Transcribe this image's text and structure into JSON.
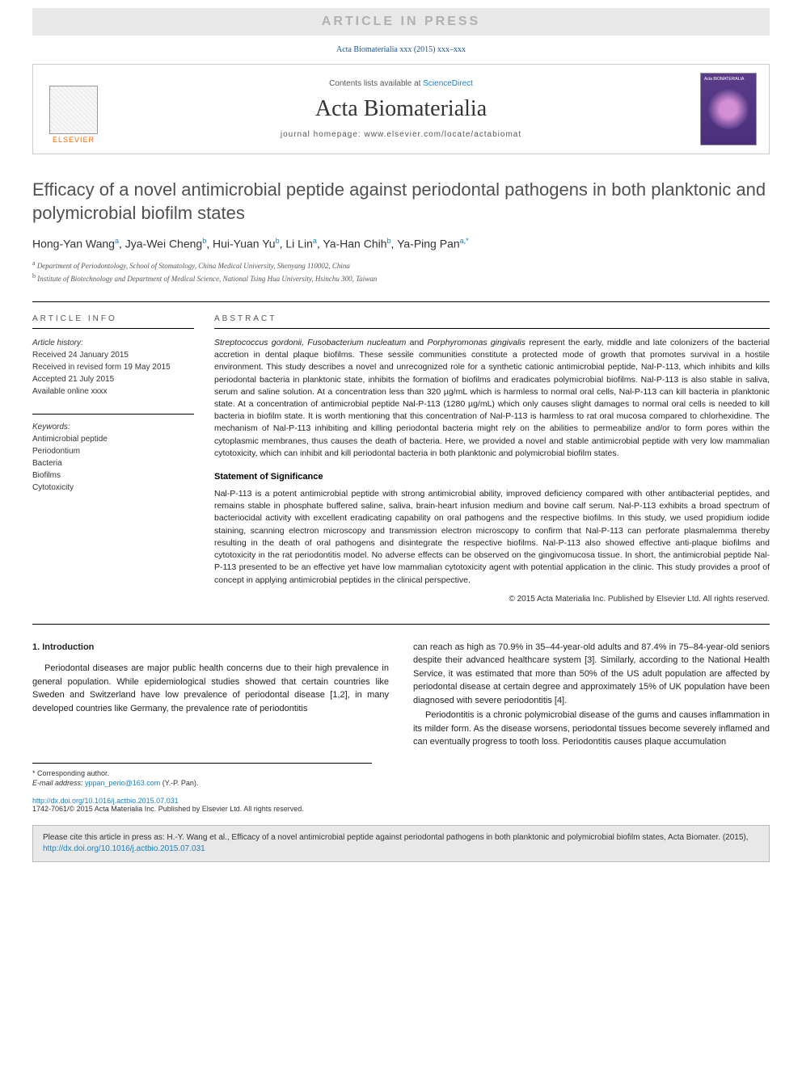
{
  "banner": {
    "text": "ARTICLE IN PRESS"
  },
  "citation_top": "Acta Biomaterialia xxx (2015) xxx–xxx",
  "header": {
    "contents_prefix": "Contents lists available at ",
    "contents_link": "ScienceDirect",
    "journal_name": "Acta Biomaterialia",
    "homepage_label": "journal homepage: ",
    "homepage_url": "www.elsevier.com/locate/actabiomat",
    "publisher": "ELSEVIER",
    "cover_label": "Acta BIOMATERIALIA"
  },
  "title": "Efficacy of a novel antimicrobial peptide against periodontal pathogens in both planktonic and polymicrobial biofilm states",
  "authors": [
    {
      "name": "Hong-Yan Wang",
      "sup": "a"
    },
    {
      "name": "Jya-Wei Cheng",
      "sup": "b"
    },
    {
      "name": "Hui-Yuan Yu",
      "sup": "b"
    },
    {
      "name": "Li Lin",
      "sup": "a"
    },
    {
      "name": "Ya-Han Chih",
      "sup": "b"
    },
    {
      "name": "Ya-Ping Pan",
      "sup": "a,*"
    }
  ],
  "affiliations": [
    {
      "sup": "a",
      "text": "Department of Periodontology, School of Stomatology, China Medical University, Shenyang 110002, China"
    },
    {
      "sup": "b",
      "text": "Institute of Biotechnology and Department of Medical Science, National Tsing Hua University, Hsinchu 300, Taiwan"
    }
  ],
  "article_info": {
    "header": "ARTICLE INFO",
    "history_label": "Article history:",
    "received": "Received 24 January 2015",
    "revised": "Received in revised form 19 May 2015",
    "accepted": "Accepted 21 July 2015",
    "online": "Available online xxxx",
    "keywords_label": "Keywords:",
    "keywords": [
      "Antimicrobial peptide",
      "Periodontium",
      "Bacteria",
      "Biofilms",
      "Cytotoxicity"
    ]
  },
  "abstract": {
    "header": "ABSTRACT",
    "para1_italic_species": "Streptococcus gordonii, Fusobacterium nucleatum",
    "para1_italic_and": " and ",
    "para1_italic_species2": "Porphyromonas gingivalis",
    "para1_rest": " represent the early, middle and late colonizers of the bacterial accretion in dental plaque biofilms. These sessile communities constitute a protected mode of growth that promotes survival in a hostile environment. This study describes a novel and unrecognized role for a synthetic cationic antimicrobial peptide, Nal-P-113, which inhibits and kills periodontal bacteria in planktonic state, inhibits the formation of biofilms and eradicates polymicrobial biofilms. Nal-P-113 is also stable in saliva, serum and saline solution. At a concentration less than 320 µg/mL which is harmless to normal oral cells, Nal-P-113 can kill bacteria in planktonic state. At a concentration of antimicrobial peptide Nal-P-113 (1280 µg/mL) which only causes slight damages to normal oral cells is needed to kill bacteria in biofilm state. It is worth mentioning that this concentration of Nal-P-113 is harmless to rat oral mucosa compared to chlorhexidine. The mechanism of Nal-P-113 inhibiting and killing periodontal bacteria might rely on the abilities to permeabilize and/or to form pores within the cytoplasmic membranes, thus causes the death of bacteria. Here, we provided a novel and stable antimicrobial peptide with very low mammalian cytotoxicity, which can inhibit and kill periodontal bacteria in both planktonic and polymicrobial biofilm states.",
    "statement_header": "Statement of Significance",
    "para2": "Nal-P-113 is a potent antimicrobial peptide with strong antimicrobial ability, improved deficiency compared with other antibacterial peptides, and remains stable in phosphate buffered saline, saliva, brain-heart infusion medium and bovine calf serum. Nal-P-113 exhibits a broad spectrum of bacteriocidal activity with excellent eradicating capability on oral pathogens and the respective biofilms. In this study, we used propidium iodide staining, scanning electron microscopy and transmission electron microscopy to confirm that Nal-P-113 can perforate plasmalemma thereby resulting in the death of oral pathogens and disintegrate the respective biofilms. Nal-P-113 also showed effective anti-plaque biofilms and cytotoxicity in the rat periodontitis model. No adverse effects can be observed on the gingivomucosa tissue. In short, the antimicrobial peptide Nal-P-113 presented to be an effective yet have low mammalian cytotoxicity agent with potential application in the clinic. This study provides a proof of concept in applying antimicrobial peptides in the clinical perspective.",
    "copyright": "© 2015 Acta Materialia Inc. Published by Elsevier Ltd. All rights reserved."
  },
  "intro": {
    "header": "1. Introduction",
    "col1": "Periodontal diseases are major public health concerns due to their high prevalence in general population. While epidemiological studies showed that certain countries like Sweden and Switzerland have low prevalence of periodontal disease [1,2], in many developed countries like Germany, the prevalence rate of periodontitis",
    "col2a": "can reach as high as 70.9% in 35–44-year-old adults and 87.4% in 75–84-year-old seniors despite their advanced healthcare system [3]. Similarly, according to the National Health Service, it was estimated that more than 50% of the US adult population are affected by periodontal disease at certain degree and approximately 15% of UK population have been diagnosed with severe periodontitis [4].",
    "col2b": "Periodontitis is a chronic polymicrobial disease of the gums and causes inflammation in its milder form. As the disease worsens, periodontal tissues become severely inflamed and can eventually progress to tooth loss. Periodontitis causes plaque accumulation"
  },
  "footnote": {
    "corr": "* Corresponding author.",
    "email_label": "E-mail address: ",
    "email": "yppan_perio@163.com",
    "email_suffix": " (Y.-P. Pan)."
  },
  "doi": {
    "url": "http://dx.doi.org/10.1016/j.actbio.2015.07.031",
    "issn_copyright": "1742-7061/© 2015 Acta Materialia Inc. Published by Elsevier Ltd. All rights reserved."
  },
  "cite_box": {
    "text": "Please cite this article in press as: H.-Y. Wang et al., Efficacy of a novel antimicrobial peptide against periodontal pathogens in both planktonic and polymicrobial biofilm states, Acta Biomater. (2015), ",
    "url": "http://dx.doi.org/10.1016/j.actbio.2015.07.031"
  },
  "colors": {
    "link": "#1a7fc4",
    "banner_bg": "#e8e8e8",
    "banner_text": "#b0b0b0",
    "title_grey": "#505050",
    "elsevier_orange": "#ff6600",
    "cover_bg": "#5a3d8a"
  }
}
